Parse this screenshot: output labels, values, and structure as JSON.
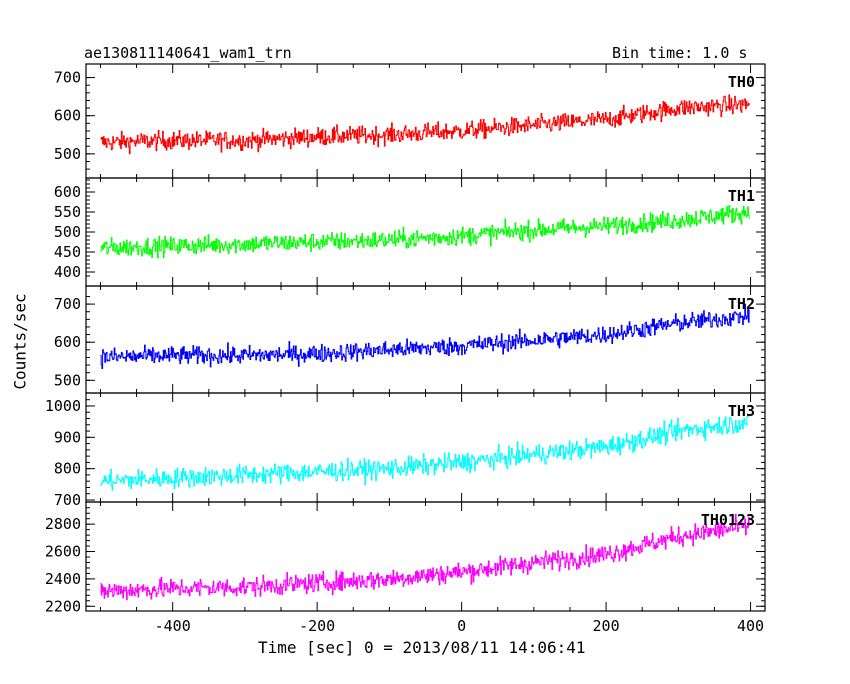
{
  "chart_data": {
    "type": "line",
    "title": "ae130811140641_wam1_trn",
    "bin_time": "Bin time: 1.0 s",
    "xlabel": "Time [sec] 0 = 2013/08/11 14:06:41",
    "ylabel": "Counts/sec",
    "xlim": [
      -520,
      420
    ],
    "x_ticks": [
      -400,
      -200,
      0,
      200,
      400
    ],
    "grid": false,
    "panels": [
      {
        "name": "TH0",
        "color": "#ff0000",
        "ylim": [
          455,
          712
        ],
        "y_ticks": [
          500,
          600,
          700
        ],
        "x": [
          -500,
          -400,
          -300,
          -200,
          -100,
          0,
          100,
          200,
          300,
          400
        ],
        "y": [
          530,
          535,
          535,
          545,
          550,
          560,
          575,
          590,
          620,
          630
        ]
      },
      {
        "name": "TH1",
        "color": "#00ff00",
        "ylim": [
          385,
          630
        ],
        "y_ticks": [
          400,
          450,
          500,
          550,
          600
        ],
        "x": [
          -500,
          -400,
          -300,
          -200,
          -100,
          0,
          100,
          200,
          300,
          400
        ],
        "y": [
          460,
          465,
          470,
          475,
          480,
          490,
          505,
          515,
          530,
          550
        ]
      },
      {
        "name": "TH2",
        "color": "#0000ff",
        "ylim": [
          485,
          737
        ],
        "y_ticks": [
          500,
          600,
          700
        ],
        "x": [
          -500,
          -400,
          -300,
          -200,
          -100,
          0,
          100,
          200,
          300,
          400
        ],
        "y": [
          560,
          565,
          565,
          570,
          580,
          590,
          605,
          620,
          650,
          670
        ]
      },
      {
        "name": "TH3",
        "color": "#00ffff",
        "ylim": [
          700,
          1035
        ],
        "y_ticks": [
          700,
          800,
          900,
          1000
        ],
        "x": [
          -500,
          -400,
          -300,
          -200,
          -100,
          0,
          100,
          200,
          300,
          400
        ],
        "y": [
          760,
          770,
          780,
          790,
          800,
          820,
          845,
          870,
          920,
          950
        ]
      },
      {
        "name": "TH0123",
        "color": "#ff00ff",
        "ylim": [
          2180,
          2940
        ],
        "y_ticks": [
          2200,
          2400,
          2600,
          2800
        ],
        "x": [
          -500,
          -400,
          -300,
          -200,
          -100,
          0,
          100,
          200,
          300,
          400
        ],
        "y": [
          2310,
          2330,
          2340,
          2370,
          2400,
          2450,
          2520,
          2580,
          2710,
          2790
        ]
      }
    ]
  }
}
